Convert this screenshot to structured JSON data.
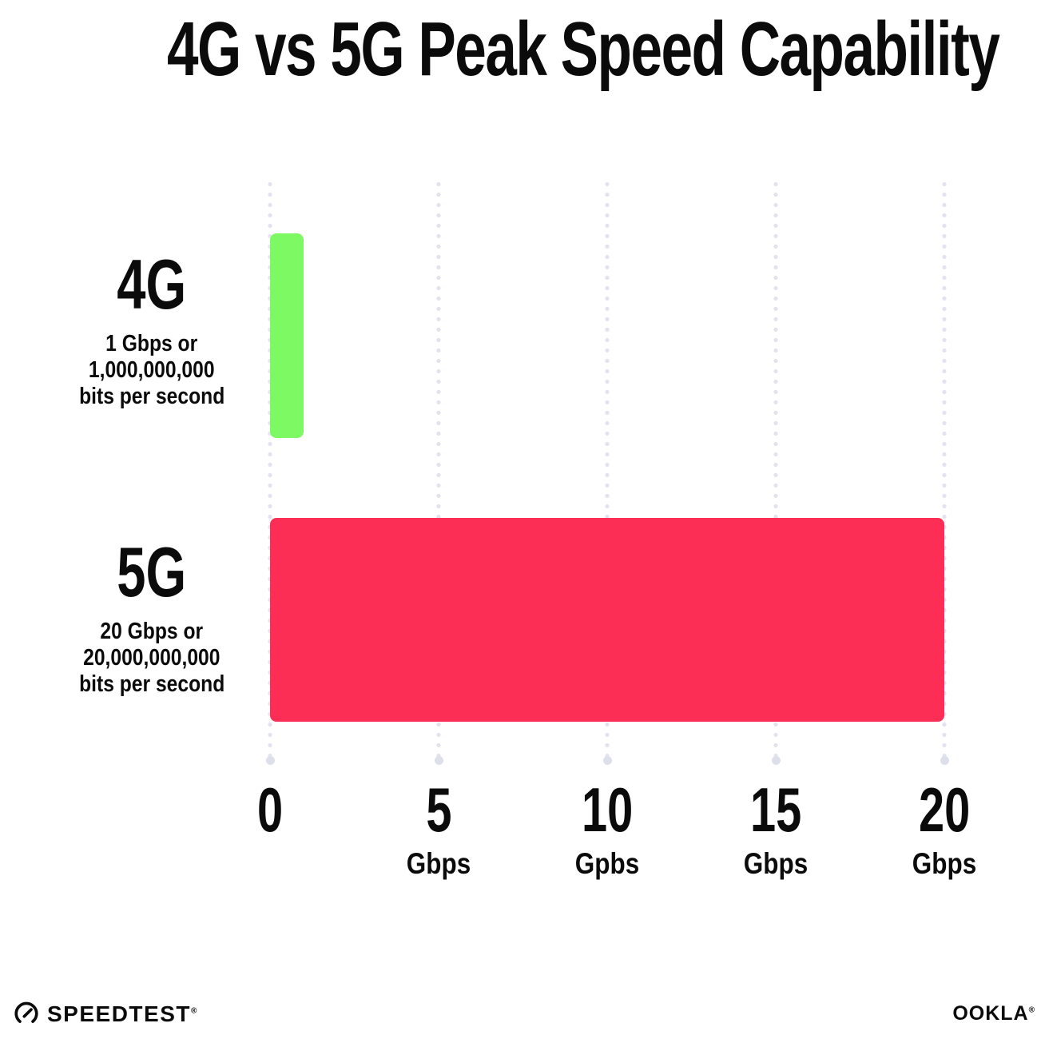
{
  "title": "4G vs 5G Peak Speed Capability",
  "chart_data": {
    "type": "bar",
    "orientation": "horizontal",
    "title": "4G vs 5G Peak Speed Capability",
    "xlim": [
      0,
      20
    ],
    "grid": "dotted-vertical-gridlines",
    "legend": "none",
    "rows": [
      {
        "category": "4G",
        "value": 1,
        "color": "#7DF964",
        "sublabel_lines": [
          "1 Gbps or",
          "1,000,000,000",
          "bits per second"
        ]
      },
      {
        "category": "5G",
        "value": 20,
        "color": "#FC2E56",
        "sublabel_lines": [
          "20 Gbps or",
          "20,000,000,000",
          "bits per second"
        ]
      }
    ],
    "x_ticks": [
      {
        "value": 0,
        "label": "0",
        "unit": ""
      },
      {
        "value": 5,
        "label": "5",
        "unit": "Gbps"
      },
      {
        "value": 10,
        "label": "10",
        "unit": "Gpbs"
      },
      {
        "value": 15,
        "label": "15",
        "unit": "Gbps"
      },
      {
        "value": 20,
        "label": "20",
        "unit": "Gbps"
      }
    ]
  },
  "footer": {
    "speedtest_label": "SPEEDTEST",
    "speedtest_trademark": "®",
    "ookla_label": "OOKLA",
    "ookla_trademark": "®"
  },
  "colors": {
    "bar_4g": "#7DF964",
    "bar_5g": "#FC2E56",
    "gridline_dots": "#E2E3EF",
    "gridline_end_dot": "#DDE0EB",
    "text": "#0B0B0B",
    "background": "#FFFFFF"
  }
}
